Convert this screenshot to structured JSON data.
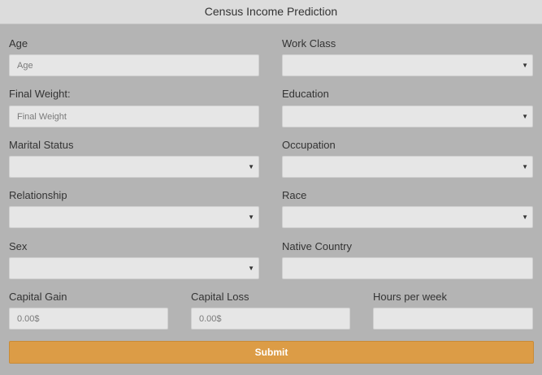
{
  "header": {
    "title": "Census Income Prediction"
  },
  "form": {
    "age": {
      "label": "Age",
      "placeholder": "Age"
    },
    "work_class": {
      "label": "Work Class",
      "value": ""
    },
    "final_weight": {
      "label": "Final Weight:",
      "placeholder": "Final Weight"
    },
    "education": {
      "label": "Education",
      "value": ""
    },
    "marital_status": {
      "label": "Marital Status",
      "value": ""
    },
    "occupation": {
      "label": "Occupation",
      "value": ""
    },
    "relationship": {
      "label": "Relationship",
      "value": ""
    },
    "race": {
      "label": "Race",
      "value": ""
    },
    "sex": {
      "label": "Sex",
      "value": ""
    },
    "native_country": {
      "label": "Native Country",
      "placeholder": ""
    },
    "capital_gain": {
      "label": "Capital Gain",
      "placeholder": "0.00$"
    },
    "capital_loss": {
      "label": "Capital Loss",
      "placeholder": "0.00$"
    },
    "hours_per_week": {
      "label": "Hours per week",
      "placeholder": ""
    },
    "submit_label": "Submit"
  },
  "icons": {
    "dropdown": "dropdown-arrow-icon"
  },
  "colors": {
    "background": "#b4b4b4",
    "header": "#dcdcdc",
    "field": "#e6e6e6",
    "submit": "#dc9c46"
  }
}
